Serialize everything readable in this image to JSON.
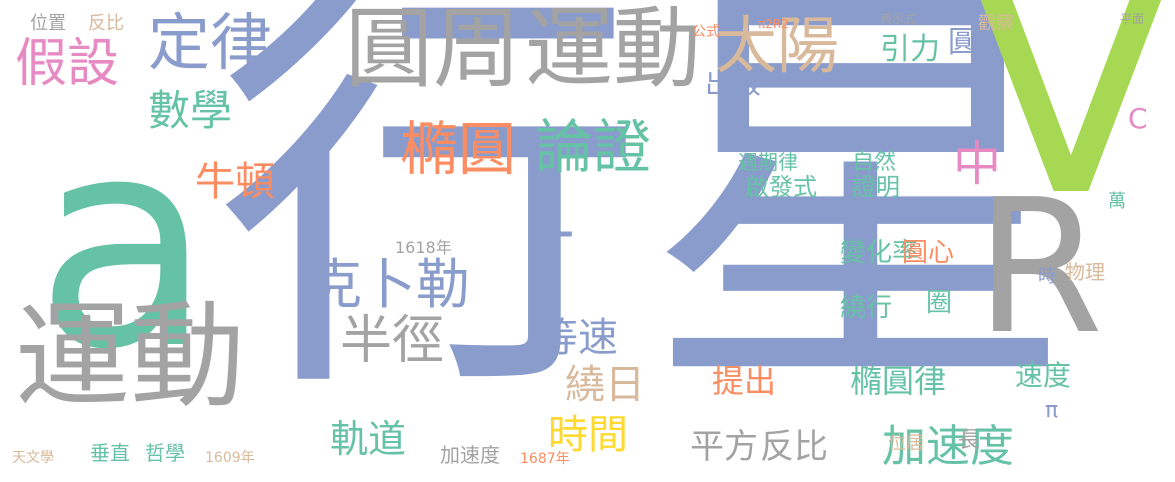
{
  "palette": {
    "slate": "#8a9ccc",
    "gray": "#a3a3a3",
    "mint": "#66c2a5",
    "tan": "#d9b99b",
    "lime": "#a6d854",
    "orange": "#fc8d62",
    "pink": "#e78ac3",
    "yellow": "#ffd92f"
  },
  "words": [
    "行星",
    "a",
    "V",
    "R",
    "運動",
    "圓周",
    "運動",
    "定律",
    "太陽",
    "假設",
    "橢圓",
    "論證",
    "克卜勒",
    "半徑",
    "數學",
    "牛頓",
    "時間",
    "加速度",
    "軌道",
    "平方",
    "反比",
    "T",
    "中",
    "等速",
    "繞日",
    "提出",
    "橢圓律",
    "變化率",
    "圓心",
    "啟發式",
    "證明",
    "週期律",
    "自然",
    "繞行",
    "圈",
    "出版",
    "引力",
    "圓",
    "位置",
    "反比",
    "公式",
    "π2R2",
    "表示式",
    "觀察",
    "平面",
    "1618年",
    "1609年",
    "1687年",
    "天文學",
    "垂直",
    "哲學",
    "加速度",
    "長",
    "位居",
    "速度",
    "物理",
    "時",
    "萬",
    "π",
    "C"
  ]
}
